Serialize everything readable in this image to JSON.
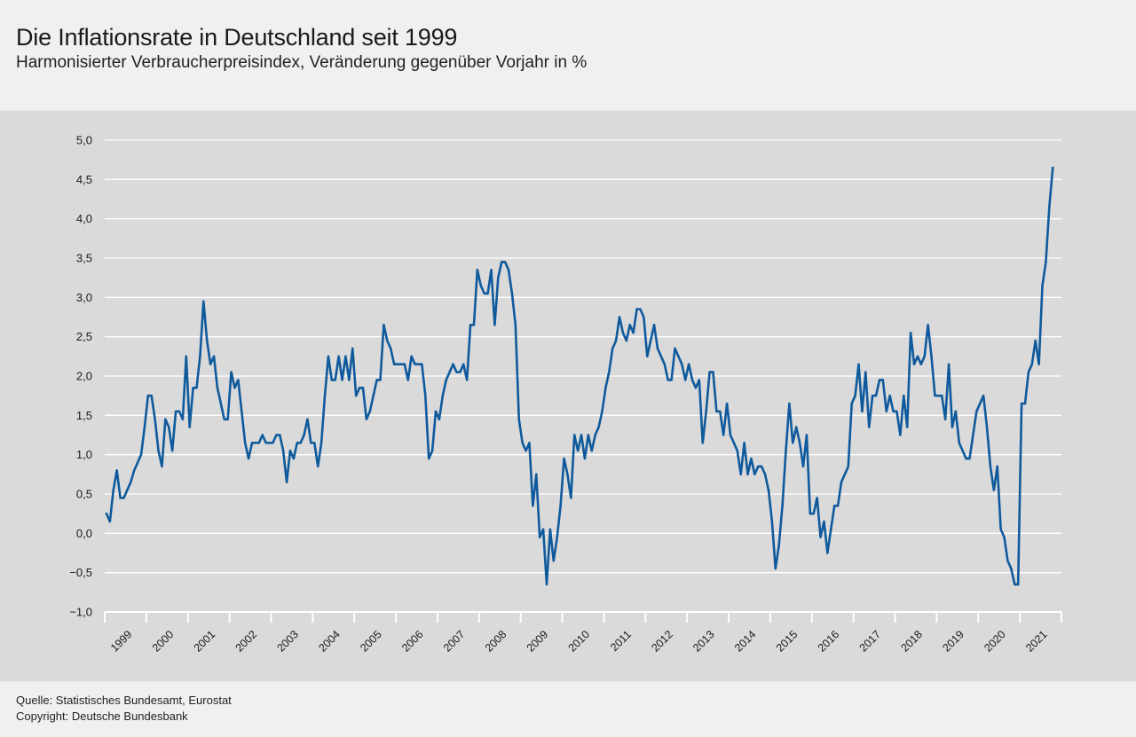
{
  "header": {
    "title": "Die Inflationsrate in Deutschland seit 1999",
    "subtitle": "Harmonisierter Verbraucherpreisindex, Veränderung gegenüber Vorjahr in %"
  },
  "footer": {
    "source": "Quelle: Statistisches Bundesamt, Eurostat",
    "copyright": "Copyright: Deutsche Bundesbank"
  },
  "colors": {
    "line": "#0f5a9c",
    "grid": "#ffffff",
    "panel": "#dadada"
  },
  "chart_data": {
    "type": "line",
    "title": "Die Inflationsrate in Deutschland seit 1999",
    "subtitle": "Harmonisierter Verbraucherpreisindex, Veränderung gegenüber Vorjahr in %",
    "xlabel": "",
    "ylabel": "",
    "ylim": [
      -1.0,
      5.0
    ],
    "yticks": [
      -1.0,
      -0.5,
      0.0,
      0.5,
      1.0,
      1.5,
      2.0,
      2.5,
      3.0,
      3.5,
      4.0,
      4.5,
      5.0
    ],
    "ytick_labels": [
      "−1,0",
      "−0,5",
      "0,0",
      "0,5",
      "1,0",
      "1,5",
      "2,0",
      "2,5",
      "3,0",
      "3,5",
      "4,0",
      "4,5",
      "5,0"
    ],
    "x_start": "1999-01",
    "x_end": "2021-12",
    "xtick_labels": [
      "1999",
      "2000",
      "2001",
      "2002",
      "2003",
      "2004",
      "2005",
      "2006",
      "2007",
      "2008",
      "2009",
      "2010",
      "2011",
      "2012",
      "2013",
      "2014",
      "2015",
      "2016",
      "2017",
      "2018",
      "2019",
      "2020",
      "2021"
    ],
    "grid": "horizontal",
    "legend": "none",
    "series": [
      {
        "frequency": "monthly",
        "start": "1999-01",
        "values": [
          0.25,
          0.15,
          0.55,
          0.8,
          0.45,
          0.45,
          0.55,
          0.65,
          0.8,
          0.9,
          1.0,
          1.35,
          1.75,
          1.75,
          1.45,
          1.05,
          0.85,
          1.45,
          1.35,
          1.05,
          1.55,
          1.55,
          1.45,
          2.25,
          1.35,
          1.85,
          1.85,
          2.25,
          2.95,
          2.45,
          2.15,
          2.25,
          1.85,
          1.65,
          1.45,
          1.45,
          2.05,
          1.85,
          1.95,
          1.55,
          1.15,
          0.95,
          1.15,
          1.15,
          1.15,
          1.25,
          1.15,
          1.15,
          1.15,
          1.25,
          1.25,
          1.05,
          0.65,
          1.05,
          0.95,
          1.15,
          1.15,
          1.25,
          1.45,
          1.15,
          1.15,
          0.85,
          1.15,
          1.75,
          2.25,
          1.95,
          1.95,
          2.25,
          1.95,
          2.25,
          1.95,
          2.35,
          1.75,
          1.85,
          1.85,
          1.45,
          1.55,
          1.75,
          1.95,
          1.95,
          2.65,
          2.45,
          2.35,
          2.15,
          2.15,
          2.15,
          2.15,
          1.95,
          2.25,
          2.15,
          2.15,
          2.15,
          1.75,
          0.95,
          1.05,
          1.55,
          1.45,
          1.75,
          1.95,
          2.05,
          2.15,
          2.05,
          2.05,
          2.15,
          1.95,
          2.65,
          2.65,
          3.35,
          3.15,
          3.05,
          3.05,
          3.35,
          2.65,
          3.25,
          3.45,
          3.45,
          3.35,
          3.05,
          2.65,
          1.45,
          1.15,
          1.05,
          1.15,
          0.35,
          0.75,
          -0.05,
          0.05,
          -0.65,
          0.05,
          -0.35,
          -0.05,
          0.35,
          0.95,
          0.75,
          0.45,
          1.25,
          1.05,
          1.25,
          0.95,
          1.25,
          1.05,
          1.25,
          1.35,
          1.55,
          1.85,
          2.05,
          2.35,
          2.45,
          2.75,
          2.55,
          2.45,
          2.65,
          2.55,
          2.85,
          2.85,
          2.75,
          2.25,
          2.45,
          2.65,
          2.35,
          2.25,
          2.15,
          1.95,
          1.95,
          2.35,
          2.25,
          2.15,
          1.95,
          2.15,
          1.95,
          1.85,
          1.95,
          1.15,
          1.55,
          2.05,
          2.05,
          1.55,
          1.55,
          1.25,
          1.65,
          1.25,
          1.15,
          1.05,
          0.75,
          1.15,
          0.75,
          0.95,
          0.75,
          0.85,
          0.85,
          0.75,
          0.55,
          0.15,
          -0.45,
          -0.15,
          0.35,
          1.05,
          1.65,
          1.15,
          1.35,
          1.15,
          0.85,
          1.25,
          0.25,
          0.25,
          0.45,
          -0.05,
          0.15,
          -0.25,
          0.05,
          0.35,
          0.35,
          0.65,
          0.75,
          0.85,
          1.65,
          1.75,
          2.15,
          1.55,
          2.05,
          1.35,
          1.75,
          1.75,
          1.95,
          1.95,
          1.55,
          1.75,
          1.55,
          1.55,
          1.25,
          1.75,
          1.35,
          2.55,
          2.15,
          2.25,
          2.15,
          2.25,
          2.65,
          2.25,
          1.75,
          1.75,
          1.75,
          1.45,
          2.15,
          1.35,
          1.55,
          1.15,
          1.05,
          0.95,
          0.95,
          1.25,
          1.55,
          1.65,
          1.75,
          1.35,
          0.85,
          0.55,
          0.85,
          0.05,
          -0.05,
          -0.35,
          -0.45,
          -0.65,
          -0.65,
          1.65,
          1.65,
          2.05,
          2.15,
          2.45,
          2.15,
          3.15,
          3.45,
          4.15,
          4.65
        ]
      }
    ]
  }
}
